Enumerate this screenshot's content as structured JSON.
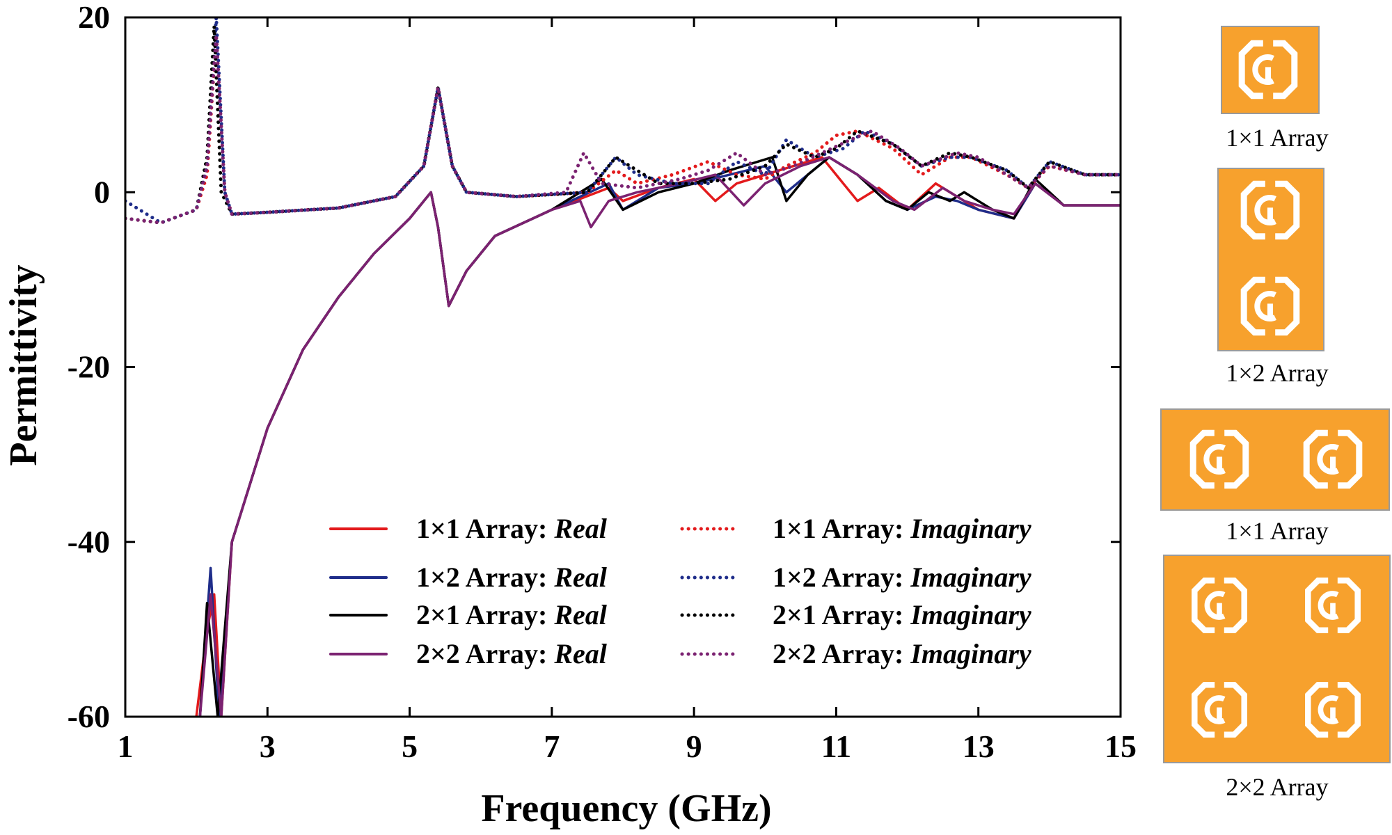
{
  "chart_data": {
    "type": "line",
    "xlabel": "Frequency (GHz)",
    "ylabel": "Permittivity",
    "xlim": [
      1,
      15
    ],
    "ylim": [
      -60,
      20
    ],
    "xticks": [
      1,
      3,
      5,
      7,
      9,
      11,
      13,
      15
    ],
    "yticks": [
      20,
      0,
      -20,
      -40,
      -60
    ],
    "grid": false,
    "legend_position": "bottom-right",
    "legend_suffix_real": "Real",
    "legend_suffix_imag": "Imaginary",
    "series": [
      {
        "name": "1×1 Array",
        "part": "Real",
        "color": "#e31a1c",
        "style": "solid",
        "points": [
          [
            2.0,
            -60
          ],
          [
            2.15,
            -50
          ],
          [
            2.25,
            -46
          ],
          [
            2.35,
            -60
          ],
          [
            2.5,
            -40
          ],
          [
            3,
            -27
          ],
          [
            3.5,
            -18
          ],
          [
            4,
            -12
          ],
          [
            4.5,
            -7
          ],
          [
            5,
            -3
          ],
          [
            5.3,
            0
          ],
          [
            5.4,
            -4
          ],
          [
            5.55,
            -13
          ],
          [
            5.8,
            -9
          ],
          [
            6.2,
            -5
          ],
          [
            7,
            -2
          ],
          [
            7.8,
            0.5
          ],
          [
            8,
            -1
          ],
          [
            8.5,
            0.5
          ],
          [
            9,
            1.5
          ],
          [
            9.3,
            -1
          ],
          [
            9.6,
            1
          ],
          [
            10,
            2
          ],
          [
            10.4,
            3
          ],
          [
            10.8,
            4
          ],
          [
            11.1,
            1
          ],
          [
            11.3,
            -1
          ],
          [
            11.6,
            0.5
          ],
          [
            12,
            -2
          ],
          [
            12.4,
            1
          ],
          [
            12.6,
            0
          ],
          [
            13,
            -2
          ],
          [
            13.5,
            -3
          ],
          [
            13.8,
            1
          ],
          [
            14.2,
            -1.5
          ],
          [
            15,
            -1.5
          ]
        ]
      },
      {
        "name": "1×2 Array",
        "part": "Real",
        "color": "#1f2d8a",
        "style": "solid",
        "points": [
          [
            2.05,
            -60
          ],
          [
            2.2,
            -43
          ],
          [
            2.32,
            -60
          ],
          [
            2.5,
            -40
          ],
          [
            3,
            -27
          ],
          [
            3.5,
            -18
          ],
          [
            4,
            -12
          ],
          [
            4.5,
            -7
          ],
          [
            5,
            -3
          ],
          [
            5.3,
            0
          ],
          [
            5.4,
            -4
          ],
          [
            5.55,
            -13
          ],
          [
            5.8,
            -9
          ],
          [
            6.2,
            -5
          ],
          [
            7,
            -2
          ],
          [
            7.8,
            1
          ],
          [
            8,
            -2
          ],
          [
            8.5,
            0.5
          ],
          [
            9,
            1
          ],
          [
            9.5,
            2
          ],
          [
            10,
            3
          ],
          [
            10.3,
            0
          ],
          [
            10.6,
            2
          ],
          [
            10.9,
            4
          ],
          [
            11.3,
            2
          ],
          [
            11.7,
            -1
          ],
          [
            12,
            -2
          ],
          [
            12.4,
            -0.5
          ],
          [
            12.7,
            -1
          ],
          [
            13,
            -2
          ],
          [
            13.5,
            -3
          ],
          [
            13.8,
            1
          ],
          [
            14.2,
            -1.5
          ],
          [
            15,
            -1.5
          ]
        ]
      },
      {
        "name": "2×1 Array",
        "part": "Real",
        "color": "#000000",
        "style": "solid",
        "points": [
          [
            2.05,
            -60
          ],
          [
            2.15,
            -47
          ],
          [
            2.3,
            -60
          ],
          [
            2.5,
            -40
          ],
          [
            3,
            -27
          ],
          [
            3.5,
            -18
          ],
          [
            4,
            -12
          ],
          [
            4.5,
            -7
          ],
          [
            5,
            -3
          ],
          [
            5.3,
            0
          ],
          [
            5.4,
            -4
          ],
          [
            5.55,
            -13
          ],
          [
            5.8,
            -9
          ],
          [
            6.2,
            -5
          ],
          [
            7,
            -2
          ],
          [
            7.7,
            1.5
          ],
          [
            8,
            -2
          ],
          [
            8.5,
            0
          ],
          [
            9,
            1
          ],
          [
            9.5,
            2.5
          ],
          [
            10.1,
            4
          ],
          [
            10.3,
            -1
          ],
          [
            10.6,
            2
          ],
          [
            10.9,
            4
          ],
          [
            11.3,
            2
          ],
          [
            11.7,
            -1
          ],
          [
            12,
            -2
          ],
          [
            12.3,
            0
          ],
          [
            12.6,
            -1
          ],
          [
            12.8,
            0
          ],
          [
            13.2,
            -2
          ],
          [
            13.5,
            -3
          ],
          [
            13.8,
            1.5
          ],
          [
            14.2,
            -1.5
          ],
          [
            15,
            -1.5
          ]
        ]
      },
      {
        "name": "2×2 Array",
        "part": "Real",
        "color": "#7b2271",
        "style": "solid",
        "points": [
          [
            2.05,
            -60
          ],
          [
            2.2,
            -46
          ],
          [
            2.35,
            -60
          ],
          [
            2.5,
            -40
          ],
          [
            3,
            -27
          ],
          [
            3.5,
            -18
          ],
          [
            4,
            -12
          ],
          [
            4.5,
            -7
          ],
          [
            5,
            -3
          ],
          [
            5.3,
            0
          ],
          [
            5.4,
            -4
          ],
          [
            5.55,
            -13
          ],
          [
            5.8,
            -9
          ],
          [
            6.2,
            -5
          ],
          [
            7,
            -2
          ],
          [
            7.4,
            -1
          ],
          [
            7.55,
            -4
          ],
          [
            7.8,
            -1
          ],
          [
            8.2,
            0
          ],
          [
            8.8,
            1
          ],
          [
            9.3,
            2
          ],
          [
            9.7,
            -1.5
          ],
          [
            10,
            1
          ],
          [
            10.5,
            3
          ],
          [
            10.9,
            4
          ],
          [
            11.3,
            2
          ],
          [
            11.8,
            -1
          ],
          [
            12.1,
            -2
          ],
          [
            12.5,
            0.5
          ],
          [
            12.8,
            -1
          ],
          [
            13.2,
            -2
          ],
          [
            13.5,
            -2.5
          ],
          [
            13.8,
            1
          ],
          [
            14.2,
            -1.5
          ],
          [
            15,
            -1.5
          ]
        ]
      },
      {
        "name": "1×1 Array",
        "part": "Imaginary",
        "color": "#e31a1c",
        "style": "dotted",
        "points": [
          [
            1,
            -3
          ],
          [
            1.5,
            -3.5
          ],
          [
            2,
            -2
          ],
          [
            2.15,
            2
          ],
          [
            2.28,
            18
          ],
          [
            2.4,
            0
          ],
          [
            2.5,
            -2.5
          ],
          [
            3,
            -2.3
          ],
          [
            4,
            -1.8
          ],
          [
            4.8,
            -0.5
          ],
          [
            5.2,
            3
          ],
          [
            5.4,
            12
          ],
          [
            5.6,
            3
          ],
          [
            5.8,
            0
          ],
          [
            6.5,
            -0.5
          ],
          [
            7.5,
            0
          ],
          [
            7.9,
            2.5
          ],
          [
            8.2,
            1
          ],
          [
            8.7,
            2
          ],
          [
            9.2,
            3.5
          ],
          [
            9.6,
            2
          ],
          [
            10,
            1.5
          ],
          [
            10.3,
            3
          ],
          [
            10.7,
            4.5
          ],
          [
            11,
            6.5
          ],
          [
            11.3,
            7
          ],
          [
            11.8,
            5
          ],
          [
            12.2,
            2
          ],
          [
            12.6,
            4
          ],
          [
            12.9,
            4
          ],
          [
            13.4,
            2
          ],
          [
            13.7,
            0.5
          ],
          [
            14,
            3
          ],
          [
            14.5,
            2
          ],
          [
            15,
            2
          ]
        ]
      },
      {
        "name": "1×2 Array",
        "part": "Imaginary",
        "color": "#1f2d8a",
        "style": "dotted",
        "points": [
          [
            1,
            -1
          ],
          [
            1.5,
            -3.5
          ],
          [
            2,
            -2
          ],
          [
            2.15,
            3
          ],
          [
            2.28,
            20
          ],
          [
            2.4,
            0
          ],
          [
            2.5,
            -2.5
          ],
          [
            3,
            -2.3
          ],
          [
            4,
            -1.8
          ],
          [
            4.8,
            -0.5
          ],
          [
            5.2,
            3
          ],
          [
            5.4,
            12
          ],
          [
            5.6,
            3
          ],
          [
            5.8,
            0
          ],
          [
            6.5,
            -0.5
          ],
          [
            7.5,
            0
          ],
          [
            7.9,
            4
          ],
          [
            8.2,
            2
          ],
          [
            8.7,
            1
          ],
          [
            9.2,
            1
          ],
          [
            9.6,
            3.5
          ],
          [
            10,
            2
          ],
          [
            10.3,
            6
          ],
          [
            10.7,
            4
          ],
          [
            11.1,
            5
          ],
          [
            11.4,
            7
          ],
          [
            11.8,
            5.5
          ],
          [
            12.2,
            3
          ],
          [
            12.6,
            4
          ],
          [
            12.9,
            4
          ],
          [
            13.4,
            2.5
          ],
          [
            13.7,
            0.5
          ],
          [
            14,
            3.5
          ],
          [
            14.5,
            2
          ],
          [
            15,
            2
          ]
        ]
      },
      {
        "name": "2×1 Array",
        "part": "Imaginary",
        "color": "#000000",
        "style": "dotted",
        "points": [
          [
            1,
            -3
          ],
          [
            1.5,
            -3.5
          ],
          [
            2,
            -2
          ],
          [
            2.15,
            4
          ],
          [
            2.25,
            19
          ],
          [
            2.35,
            0
          ],
          [
            2.5,
            -2.5
          ],
          [
            3,
            -2.3
          ],
          [
            4,
            -1.8
          ],
          [
            4.8,
            -0.5
          ],
          [
            5.2,
            3
          ],
          [
            5.4,
            12
          ],
          [
            5.6,
            3
          ],
          [
            5.8,
            0
          ],
          [
            6.5,
            -0.5
          ],
          [
            7.5,
            0
          ],
          [
            7.9,
            4
          ],
          [
            8.1,
            3
          ],
          [
            8.5,
            1
          ],
          [
            9,
            1
          ],
          [
            9.5,
            1.5
          ],
          [
            10,
            3
          ],
          [
            10.3,
            5.5
          ],
          [
            10.7,
            4
          ],
          [
            11,
            5
          ],
          [
            11.3,
            7
          ],
          [
            11.8,
            5.5
          ],
          [
            12.2,
            3
          ],
          [
            12.6,
            4.5
          ],
          [
            12.9,
            4
          ],
          [
            13.4,
            2.5
          ],
          [
            13.7,
            0.5
          ],
          [
            14,
            3.5
          ],
          [
            14.5,
            2
          ],
          [
            15,
            2
          ]
        ]
      },
      {
        "name": "2×2 Array",
        "part": "Imaginary",
        "color": "#7b2271",
        "style": "dotted",
        "points": [
          [
            1,
            -3
          ],
          [
            1.5,
            -3.5
          ],
          [
            2,
            -2
          ],
          [
            2.15,
            3
          ],
          [
            2.28,
            18
          ],
          [
            2.4,
            0
          ],
          [
            2.5,
            -2.5
          ],
          [
            3,
            -2.3
          ],
          [
            4,
            -1.8
          ],
          [
            4.8,
            -0.5
          ],
          [
            5.2,
            3
          ],
          [
            5.4,
            12
          ],
          [
            5.6,
            3
          ],
          [
            5.8,
            0
          ],
          [
            6.5,
            -0.5
          ],
          [
            7.2,
            0
          ],
          [
            7.45,
            4.5
          ],
          [
            7.7,
            1
          ],
          [
            8.2,
            0.5
          ],
          [
            8.8,
            1.5
          ],
          [
            9.2,
            2.5
          ],
          [
            9.6,
            4.5
          ],
          [
            10,
            2
          ],
          [
            10.4,
            3
          ],
          [
            10.8,
            4.5
          ],
          [
            11.2,
            6
          ],
          [
            11.5,
            7
          ],
          [
            11.9,
            5
          ],
          [
            12.2,
            3
          ],
          [
            12.7,
            4.5
          ],
          [
            13,
            4
          ],
          [
            13.4,
            2
          ],
          [
            13.7,
            0.5
          ],
          [
            14,
            3
          ],
          [
            14.5,
            2
          ],
          [
            15,
            2
          ]
        ]
      }
    ],
    "annotations": [
      "1×1 Array",
      "1×2 Array",
      "1×1 Array",
      "2×2 Array"
    ]
  },
  "colors": {
    "cell_fill": "#f7a12d",
    "cell_border": "#9a9a9a",
    "ring": "#ffffff"
  }
}
